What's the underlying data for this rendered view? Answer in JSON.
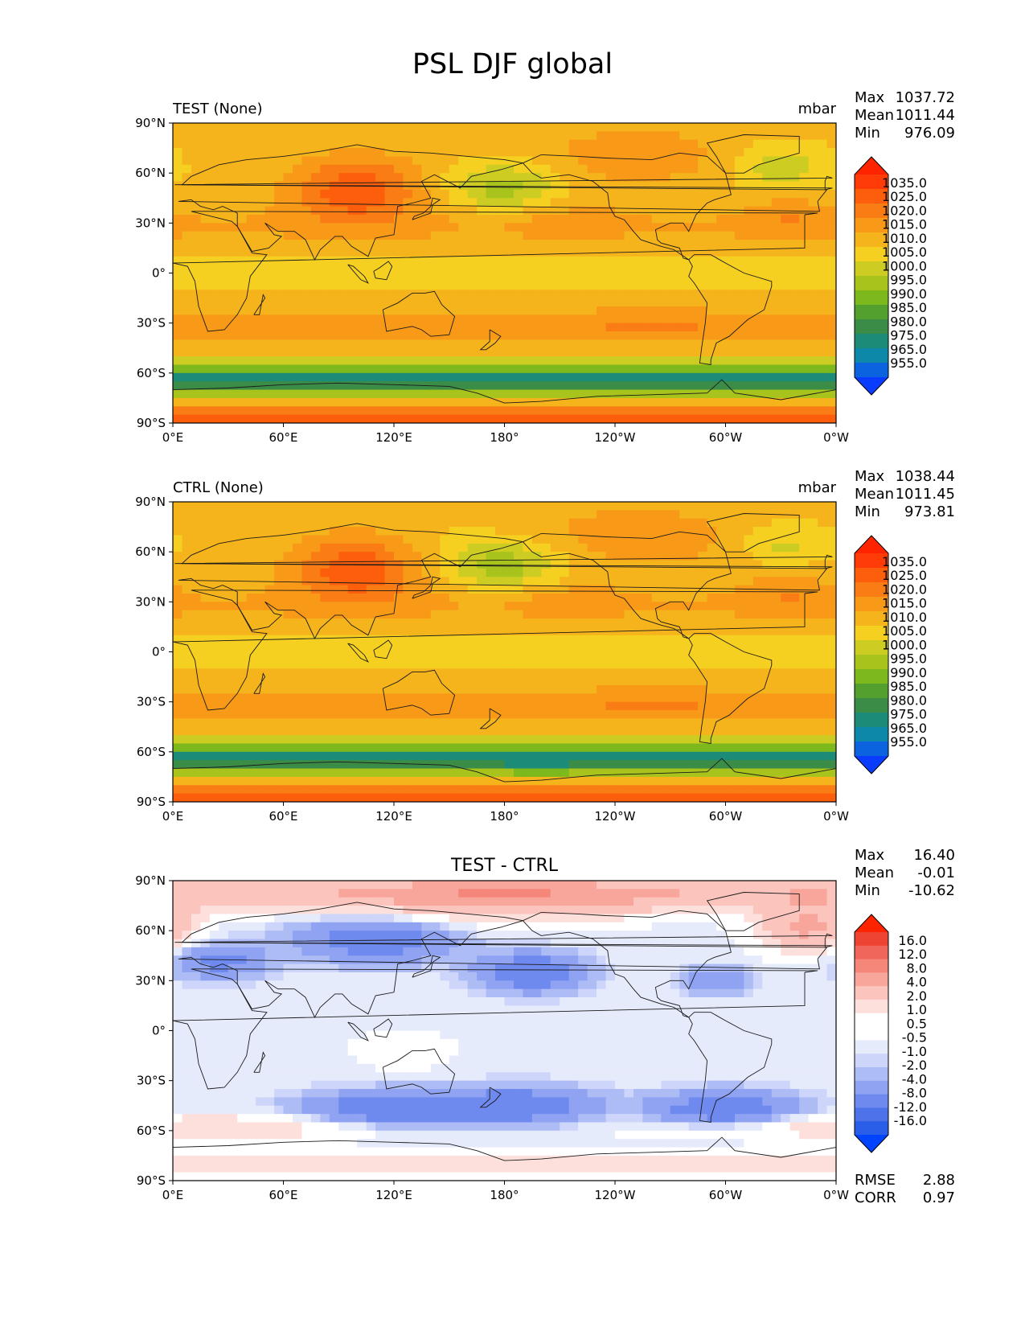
{
  "figure": {
    "title": "PSL DJF global"
  },
  "colors": {
    "psl_levels": [
      "#0a3cff",
      "#0c63e0",
      "#0e88a8",
      "#1c8c78",
      "#3a8c46",
      "#54a02e",
      "#7db81c",
      "#a8c41c",
      "#cccc22",
      "#f5d020",
      "#f6b41c",
      "#f89a18",
      "#fa7c14",
      "#fc5e0c",
      "#ff3c08",
      "#ff2400"
    ],
    "diff_levels": [
      "#0044ff",
      "#2a5de8",
      "#4d72ea",
      "#6f8aef",
      "#8fa3f2",
      "#aebcf6",
      "#cdd6fa",
      "#e6ebfc",
      "#ffffff",
      "#ffffff",
      "#fde0dc",
      "#fbc4bd",
      "#f8a69b",
      "#f5877a",
      "#f1665a",
      "#ee4434",
      "#ff2400"
    ],
    "land_outline": "#1a1a1a"
  },
  "chart_data": [
    {
      "type": "heatmap",
      "name": "test",
      "left_title": "TEST (None)",
      "center_title": "",
      "units": "mbar",
      "stats": [
        {
          "label": "Max",
          "value": "1037.72"
        },
        {
          "label": "Mean",
          "value": "1011.44"
        },
        {
          "label": "Min",
          "value": "976.09"
        }
      ],
      "extra_stats": [],
      "x_ticks": [
        "0°E",
        "60°E",
        "120°E",
        "180°",
        "120°W",
        "60°W",
        "0°W"
      ],
      "y_ticks": [
        "90°N",
        "60°N",
        "30°N",
        "0°",
        "30°S",
        "60°S",
        "90°S"
      ],
      "xlim": [
        0,
        360
      ],
      "ylim": [
        -90,
        90
      ],
      "colorbar_labels": [
        "1035.0",
        "1025.0",
        "1020.0",
        "1015.0",
        "1010.0",
        "1005.0",
        "1000.0",
        "995.0",
        "990.0",
        "985.0",
        "980.0",
        "975.0",
        "965.0",
        "955.0"
      ],
      "colorbar": "psl"
    },
    {
      "type": "heatmap",
      "name": "ctrl",
      "left_title": "CTRL (None)",
      "center_title": "",
      "units": "mbar",
      "stats": [
        {
          "label": "Max",
          "value": "1038.44"
        },
        {
          "label": "Mean",
          "value": "1011.45"
        },
        {
          "label": "Min",
          "value": "973.81"
        }
      ],
      "extra_stats": [],
      "x_ticks": [
        "0°E",
        "60°E",
        "120°E",
        "180°",
        "120°W",
        "60°W",
        "0°W"
      ],
      "y_ticks": [
        "90°N",
        "60°N",
        "30°N",
        "0°",
        "30°S",
        "60°S",
        "90°S"
      ],
      "xlim": [
        0,
        360
      ],
      "ylim": [
        -90,
        90
      ],
      "colorbar_labels": [
        "1035.0",
        "1025.0",
        "1020.0",
        "1015.0",
        "1010.0",
        "1005.0",
        "1000.0",
        "995.0",
        "990.0",
        "985.0",
        "980.0",
        "975.0",
        "965.0",
        "955.0"
      ],
      "colorbar": "psl"
    },
    {
      "type": "heatmap",
      "name": "diff",
      "left_title": "",
      "center_title": "TEST - CTRL",
      "units": "",
      "stats": [
        {
          "label": "Max",
          "value": "16.40"
        },
        {
          "label": "Mean",
          "value": "-0.01"
        },
        {
          "label": "Min",
          "value": "-10.62"
        }
      ],
      "extra_stats": [
        {
          "label": "RMSE",
          "value": "2.88"
        },
        {
          "label": "CORR",
          "value": "0.97"
        }
      ],
      "x_ticks": [
        "0°E",
        "60°E",
        "120°E",
        "180°",
        "120°W",
        "60°W",
        "0°W"
      ],
      "y_ticks": [
        "90°N",
        "60°N",
        "30°N",
        "0°",
        "30°S",
        "60°S",
        "90°S"
      ],
      "xlim": [
        0,
        360
      ],
      "ylim": [
        -90,
        90
      ],
      "colorbar_labels": [
        "16.0",
        "12.0",
        "8.0",
        "4.0",
        "2.0",
        "1.0",
        "0.5",
        "-0.5",
        "-1.0",
        "-2.0",
        "-4.0",
        "-8.0",
        "-12.0",
        "-16.0"
      ],
      "colorbar": "diff"
    }
  ]
}
